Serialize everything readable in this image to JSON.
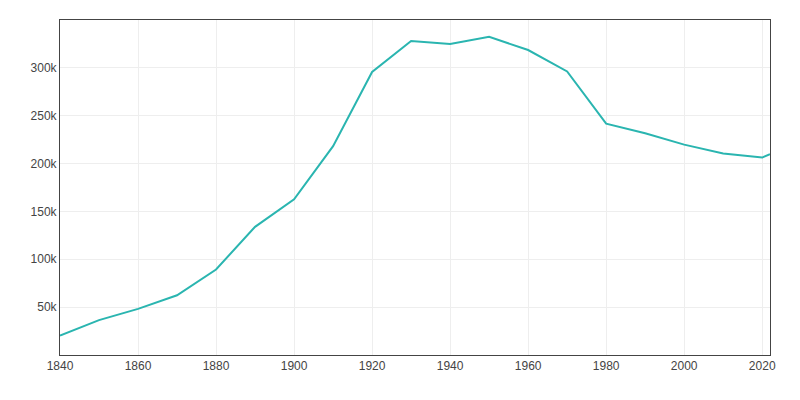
{
  "chart_data": {
    "type": "line",
    "x": [
      1840,
      1850,
      1860,
      1870,
      1880,
      1890,
      1900,
      1910,
      1920,
      1930,
      1940,
      1950,
      1960,
      1970,
      1980,
      1990,
      2000,
      2010,
      2020,
      2022
    ],
    "values": [
      20191,
      36403,
      48204,
      62386,
      89366,
      133896,
      162608,
      218149,
      295750,
      328132,
      324975,
      332488,
      318611,
      296233,
      241741,
      231636,
      219773,
      210565,
      206284,
      209783
    ],
    "color": "#2ab5b0",
    "xlim": [
      1840,
      2022
    ],
    "xticks": [
      1840,
      1860,
      1880,
      1900,
      1920,
      1940,
      1960,
      1980,
      2000,
      2020
    ],
    "ylim": [
      0,
      350000
    ],
    "yticks": [
      {
        "value": 50000,
        "label": "50k"
      },
      {
        "value": 100000,
        "label": "100k"
      },
      {
        "value": 150000,
        "label": "150k"
      },
      {
        "value": 200000,
        "label": "200k"
      },
      {
        "value": 250000,
        "label": "250k"
      },
      {
        "value": 300000,
        "label": "300k"
      }
    ],
    "grid": true
  }
}
